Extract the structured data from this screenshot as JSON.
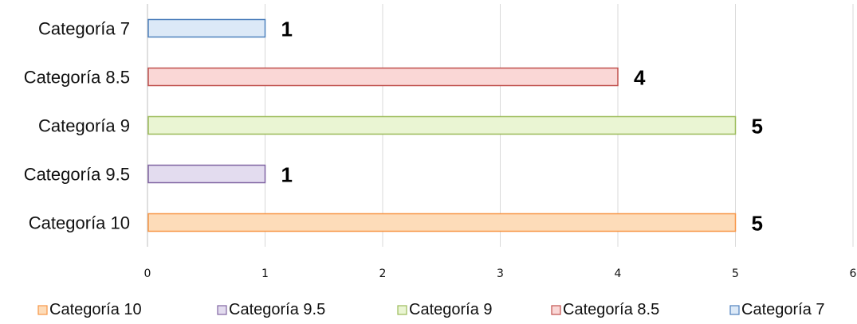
{
  "chart_data": {
    "type": "bar",
    "orientation": "horizontal",
    "categories": [
      "Categoría 7",
      "Categoría 8.5",
      "Categoría 9",
      "Categoría 9.5",
      "Categoría 10"
    ],
    "values": [
      1,
      4,
      5,
      1,
      5
    ],
    "data_labels": [
      "1",
      "4",
      "5",
      "1",
      "5"
    ],
    "xlim": [
      0,
      6
    ],
    "x_ticks": [
      "0",
      "1",
      "2",
      "3",
      "4",
      "5",
      "6"
    ],
    "grid": "vertical",
    "legend_position": "bottom",
    "legend_order": [
      "Categoría 10",
      "Categoría 9.5",
      "Categoría 9",
      "Categoría 8.5",
      "Categoría 7"
    ],
    "colors": {
      "Categoría 7": {
        "fill": "#dce9f7",
        "stroke": "#4f81bd"
      },
      "Categoría 8.5": {
        "fill": "#fad7d6",
        "stroke": "#c0504d"
      },
      "Categoría 9": {
        "fill": "#eaf5d3",
        "stroke": "#9bbb59"
      },
      "Categoría 9.5": {
        "fill": "#e3dcef",
        "stroke": "#8064a2"
      },
      "Categoría 10": {
        "fill": "#fddcb9",
        "stroke": "#f79646"
      }
    }
  }
}
